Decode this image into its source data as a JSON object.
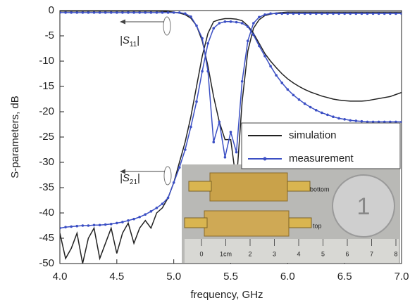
{
  "chart_data": {
    "type": "line",
    "xlabel": "frequency, GHz",
    "ylabel": "S-parameters, dB",
    "x": [
      4.0,
      4.05,
      4.1,
      4.15,
      4.2,
      4.25,
      4.3,
      4.35,
      4.4,
      4.45,
      4.5,
      4.55,
      4.6,
      4.65,
      4.7,
      4.75,
      4.8,
      4.85,
      4.9,
      4.95,
      5.0,
      5.05,
      5.1,
      5.15,
      5.2,
      5.25,
      5.3,
      5.35,
      5.4,
      5.45,
      5.5,
      5.55,
      5.6,
      5.65,
      5.7,
      5.75,
      5.8,
      5.85,
      5.9,
      5.95,
      6.0,
      6.05,
      6.1,
      6.15,
      6.2,
      6.25,
      6.3,
      6.35,
      6.4,
      6.45,
      6.5,
      6.55,
      6.6,
      6.65,
      6.7,
      6.75,
      6.8,
      6.85,
      6.9,
      6.95,
      7.0
    ],
    "xlim": [
      4,
      7
    ],
    "xticks": [
      {
        "value": 4,
        "label": "4.0"
      },
      4.5,
      {
        "value": 5,
        "label": "5.0"
      },
      5.5,
      {
        "value": 6,
        "label": "6.0"
      },
      6.5,
      {
        "value": 7,
        "label": "7.0"
      }
    ],
    "ylim": [
      -50,
      0
    ],
    "yticks": [
      0,
      -5,
      -10,
      -15,
      -20,
      -25,
      -30,
      -35,
      -40,
      -45,
      -50
    ],
    "grid": false,
    "legend": "right",
    "series": [
      {
        "name": "simulation",
        "color": "#222222",
        "marker": "none",
        "s21": [
          -44,
          -49,
          -47,
          -44,
          -50,
          -45,
          -43,
          -49,
          -46,
          -43,
          -48,
          -44,
          -42,
          -46,
          -43,
          -41.5,
          -43,
          -40,
          -39,
          -37,
          -34,
          -30,
          -26,
          -21,
          -15,
          -9,
          -4.5,
          -2.2,
          -1.8,
          -1.6,
          -1.6,
          -1.7,
          -2,
          -3,
          -4.5,
          -6.5,
          -8.5,
          -10,
          -11.3,
          -12.5,
          -13.5,
          -14.3,
          -15,
          -15.6,
          -16.1,
          -16.5,
          -16.9,
          -17.2,
          -17.5,
          -17.7,
          -17.8,
          -17.9,
          -17.9,
          -17.9,
          -17.8,
          -17.6,
          -17.4,
          -17.2,
          -17,
          -16.6,
          -16.2
        ],
        "s11": [
          -0.1,
          -0.1,
          -0.1,
          -0.1,
          -0.1,
          -0.1,
          -0.1,
          -0.1,
          -0.1,
          -0.1,
          -0.1,
          -0.1,
          -0.1,
          -0.1,
          -0.1,
          -0.1,
          -0.1,
          -0.1,
          -0.15,
          -0.2,
          -0.3,
          -0.5,
          -0.8,
          -1.5,
          -3,
          -6,
          -11,
          -17,
          -22,
          -25.5,
          -25.5,
          -34,
          -18,
          -8,
          -3.5,
          -1.8,
          -1,
          -0.7,
          -0.5,
          -0.4,
          -0.3,
          -0.3,
          -0.3,
          -0.3,
          -0.3,
          -0.3,
          -0.3,
          -0.3,
          -0.3,
          -0.3,
          -0.3,
          -0.3,
          -0.3,
          -0.3,
          -0.3,
          -0.3,
          -0.3,
          -0.3,
          -0.3,
          -0.3,
          -0.3
        ]
      },
      {
        "name": "measurement",
        "color": "#3b4fc4",
        "marker": "dot",
        "s21": [
          -43,
          -42.8,
          -42.7,
          -42.6,
          -42.5,
          -42.5,
          -42.4,
          -42.4,
          -42.3,
          -42.2,
          -42,
          -41.8,
          -41.5,
          -41.2,
          -40.8,
          -40.3,
          -39.7,
          -39,
          -38.2,
          -37,
          -34,
          -31,
          -27.5,
          -23,
          -18,
          -12,
          -6.5,
          -3.5,
          -2.5,
          -2.2,
          -2.2,
          -2.3,
          -2.5,
          -3.2,
          -4.8,
          -7,
          -9,
          -11,
          -12.8,
          -14.3,
          -15.6,
          -16.7,
          -17.6,
          -18.4,
          -19.1,
          -19.7,
          -20.2,
          -20.6,
          -21,
          -21.3,
          -21.5,
          -21.7,
          -21.8,
          -21.9,
          -22,
          -22,
          -22,
          -22,
          -22,
          -22,
          -22
        ],
        "s11": [
          -0.4,
          -0.4,
          -0.4,
          -0.4,
          -0.4,
          -0.4,
          -0.4,
          -0.4,
          -0.4,
          -0.4,
          -0.4,
          -0.4,
          -0.4,
          -0.4,
          -0.4,
          -0.4,
          -0.4,
          -0.4,
          -0.4,
          -0.4,
          -0.4,
          -0.4,
          -0.6,
          -1.2,
          -3,
          -5.5,
          -12,
          -26,
          -22,
          -29,
          -24,
          -28,
          -14,
          -6,
          -2.5,
          -1.3,
          -0.8,
          -0.6,
          -0.6,
          -0.6,
          -0.6,
          -0.6,
          -0.6,
          -0.6,
          -0.6,
          -0.6,
          -0.6,
          -0.6,
          -0.6,
          -0.6,
          -0.6,
          -0.6,
          -0.6,
          -0.6,
          -0.6,
          -0.6,
          -0.6,
          -0.6,
          -0.6,
          -0.6,
          -0.6
        ]
      }
    ],
    "annotations": [
      {
        "prefix": "|S",
        "sub": "11",
        "suffix": "|"
      },
      {
        "prefix": "|S",
        "sub": "21",
        "suffix": "|"
      }
    ],
    "inset": {
      "labels": [
        "bottom",
        "top"
      ],
      "ruler": [
        "0",
        "1cm",
        "2",
        "3",
        "4",
        "5",
        "6",
        "7",
        "8"
      ],
      "coin": "1"
    }
  }
}
